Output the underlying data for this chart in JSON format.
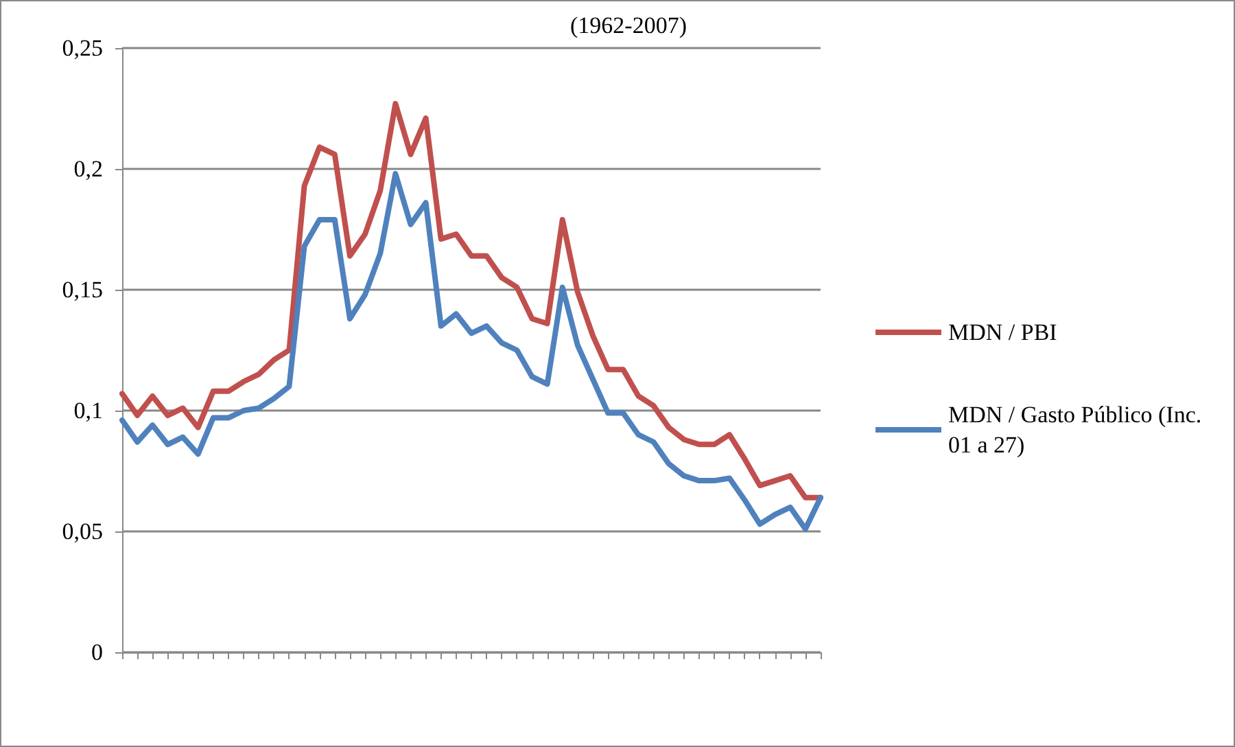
{
  "chart_data": {
    "type": "line",
    "title": "(1962-2007)",
    "categories": [
      null,
      null,
      null,
      null,
      null,
      null,
      null,
      null,
      null,
      null,
      null,
      null,
      null,
      null,
      null,
      null,
      null,
      null,
      null,
      null,
      null,
      null,
      null,
      null,
      null,
      null,
      null,
      null,
      null,
      null,
      null,
      null,
      null,
      null,
      null,
      null,
      null,
      null,
      null,
      null,
      null,
      null,
      null,
      null,
      null,
      null,
      null
    ],
    "series": [
      {
        "name": "MDN / PBI",
        "color": "#c0504d",
        "values": [
          0.107,
          0.098,
          0.106,
          0.098,
          0.101,
          0.093,
          0.108,
          0.108,
          0.112,
          0.115,
          0.121,
          0.125,
          0.193,
          0.209,
          0.206,
          0.164,
          0.173,
          0.191,
          0.227,
          0.206,
          0.221,
          0.171,
          0.173,
          0.164,
          0.164,
          0.155,
          0.151,
          0.138,
          0.136,
          0.179,
          0.149,
          0.131,
          0.117,
          0.117,
          0.106,
          0.102,
          0.093,
          0.088,
          0.086,
          0.086,
          0.09,
          0.08,
          0.069,
          0.071,
          0.073,
          0.064,
          0.064
        ]
      },
      {
        "name": "MDN / Gasto Público (Inc. 01 a 27)",
        "color": "#4f81bd",
        "values": [
          0.096,
          0.087,
          0.094,
          0.086,
          0.089,
          0.082,
          0.097,
          0.097,
          0.1,
          0.101,
          0.105,
          0.11,
          0.168,
          0.179,
          0.179,
          0.138,
          0.148,
          0.165,
          0.198,
          0.177,
          0.186,
          0.135,
          0.14,
          0.132,
          0.135,
          0.128,
          0.125,
          0.114,
          0.111,
          0.151,
          0.127,
          0.113,
          0.099,
          0.099,
          0.09,
          0.087,
          0.078,
          0.073,
          0.071,
          0.071,
          0.072,
          0.063,
          0.053,
          0.057,
          0.06,
          0.051,
          0.064
        ]
      }
    ],
    "ylim": [
      0,
      0.25
    ],
    "yticks": [
      {
        "value": 0,
        "label": "0"
      },
      {
        "value": 0.05,
        "label": "0,05"
      },
      {
        "value": 0.1,
        "label": "0,1"
      },
      {
        "value": 0.15,
        "label": "0,15"
      },
      {
        "value": 0.2,
        "label": "0,2"
      },
      {
        "value": 0.25,
        "label": "0,25"
      }
    ],
    "grid": "y",
    "legend": "right",
    "marker": "none",
    "line_style": "solid"
  }
}
